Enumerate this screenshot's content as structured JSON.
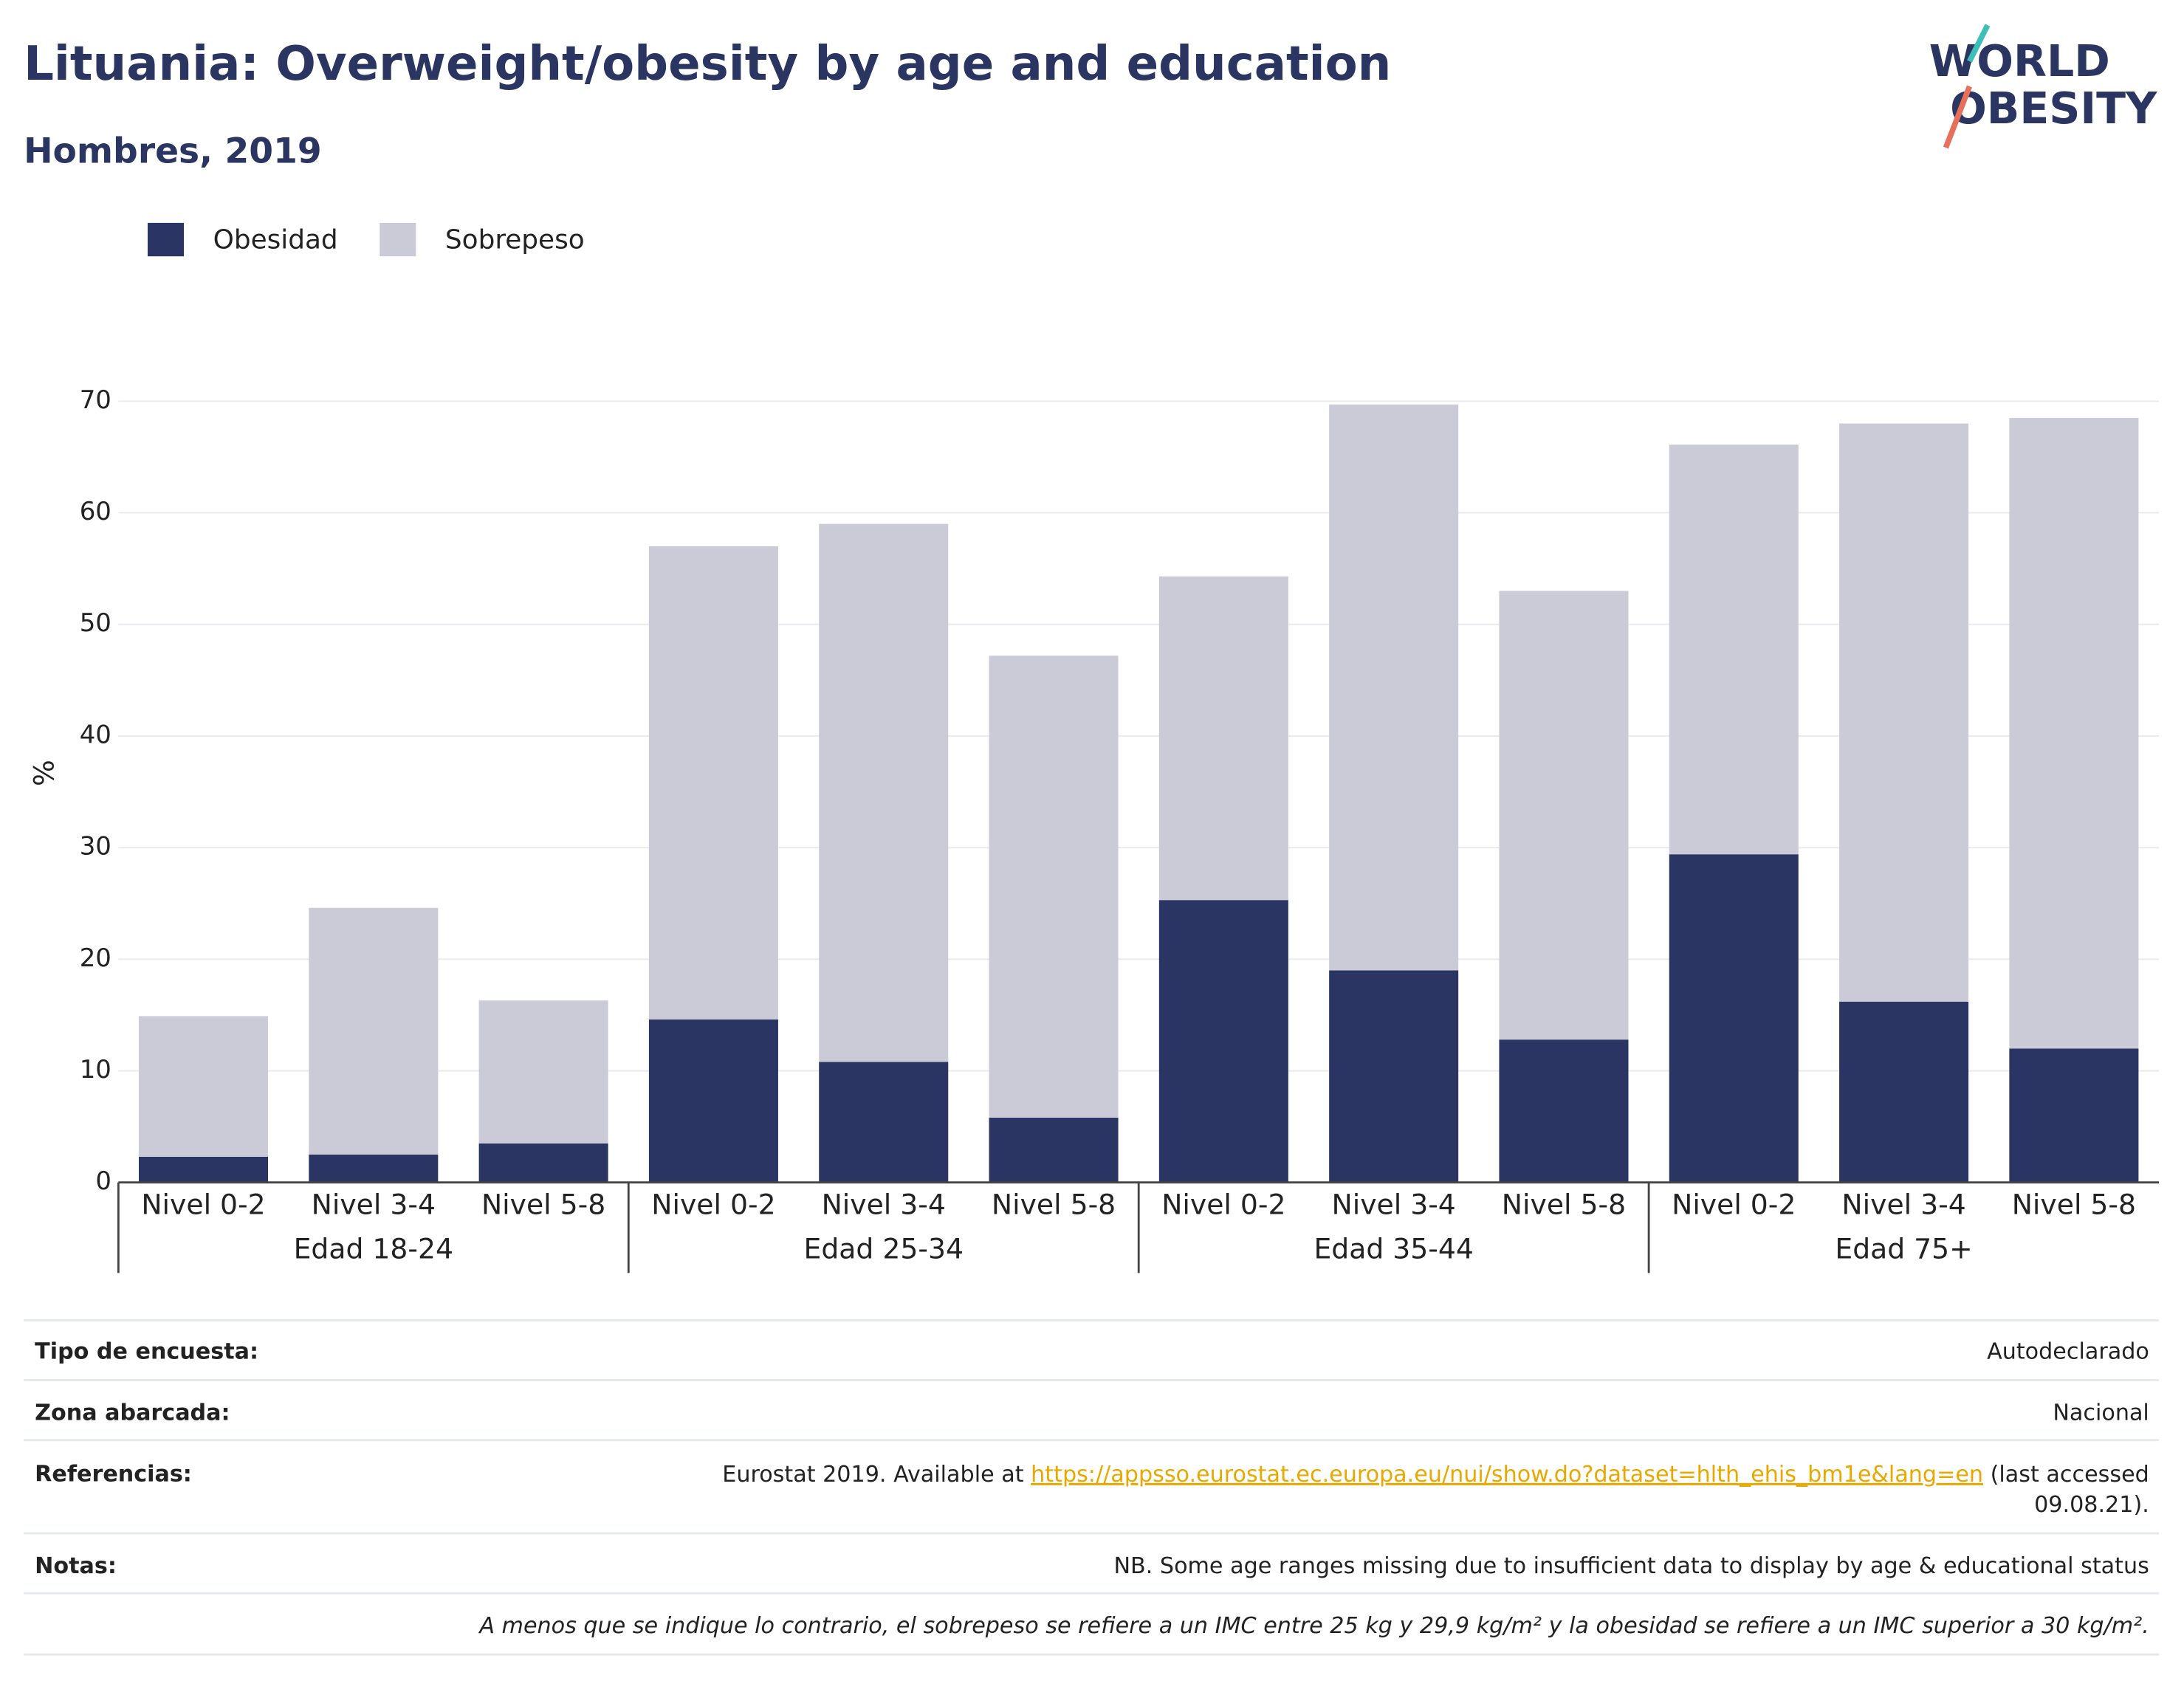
{
  "chart_data": {
    "type": "stacked_bar",
    "title": "Lituania: Overweight/obesity by age and education",
    "subtitle": "Hombres, 2019",
    "y_label": "%",
    "categories": [
      "Nivel 0-2",
      "Nivel 3-4",
      "Nivel 5-8",
      "Nivel 0-2",
      "Nivel 3-4",
      "Nivel 5-8",
      "Nivel 0-2",
      "Nivel 3-4",
      "Nivel 5-8",
      "Nivel 0-2",
      "Nivel 3-4",
      "Nivel 5-8"
    ],
    "groups": [
      "Edad 18-24",
      "Edad 25-34",
      "Edad 35-44",
      "Edad 75+"
    ],
    "series": [
      {
        "name": "Obesidad",
        "color": "#2b3563",
        "values": [
          2.3,
          2.5,
          3.5,
          14.6,
          10.8,
          5.8,
          25.3,
          19.0,
          12.8,
          29.4,
          16.2,
          12.0
        ]
      },
      {
        "name": "Sobrepeso",
        "color": "#cacbd7",
        "values": [
          12.6,
          22.1,
          12.8,
          42.4,
          48.2,
          41.4,
          29.0,
          50.7,
          40.2,
          36.7,
          51.8,
          56.5
        ]
      }
    ],
    "ylim": [
      0,
      70
    ],
    "yticks": [
      0,
      10,
      20,
      30,
      40,
      50,
      60,
      70
    ],
    "grid": true,
    "legend": "top-left"
  },
  "logo": {
    "line1": "WORLD",
    "line2": "OBESITY"
  },
  "footer": {
    "rows": [
      {
        "label": "Tipo de encuesta:",
        "value": "Autodeclarado"
      },
      {
        "label": "Zona abarcada:",
        "value": "Nacional"
      }
    ],
    "references": {
      "label": "Referencias:",
      "before": "Eurostat 2019. Available at ",
      "link": "https://appsso.eurostat.ec.europa.eu/nui/show.do?dataset=hlth_ehis_bm1e&lang=en",
      "after": " (last accessed",
      "after2": "09.08.21)."
    },
    "notes": {
      "label": "Notas:",
      "value": "NB. Some age ranges missing due to insufficient data to display by age & educational status"
    },
    "definition": "A menos que se indique lo contrario, el sobrepeso se refiere a un IMC entre 25 kg y 29,9 kg/m² y la obesidad se refiere a un IMC superior a 30 kg/m²."
  }
}
